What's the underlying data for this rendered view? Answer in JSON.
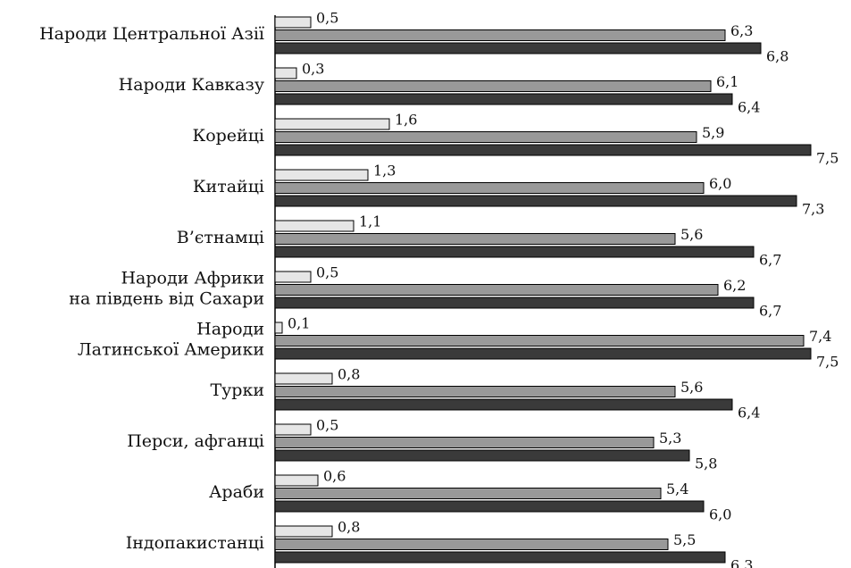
{
  "chart_data": {
    "type": "barh",
    "categories": [
      "Народи Центральної Азії",
      "Народи Кавказу",
      "Корейці",
      "Китайці",
      "В’єтнамці",
      "Народи Африки\nна південь від Сахари",
      "Народи\nЛатинської Америки",
      "Турки",
      "Перси, афганці",
      "Араби",
      "Індопакистанці"
    ],
    "series": [
      {
        "color": "#e6e6e6",
        "values": [
          0.5,
          0.3,
          1.6,
          1.3,
          1.1,
          0.5,
          0.1,
          0.8,
          0.5,
          0.6,
          0.8
        ],
        "value_labels": [
          "0,5",
          "0,3",
          "1,6",
          "1,3",
          "1,1",
          "0,5",
          "0,1",
          "0,8",
          "0,5",
          "0,6",
          "0,8"
        ]
      },
      {
        "color": "#999999",
        "values": [
          6.3,
          6.1,
          5.9,
          6.0,
          5.6,
          6.2,
          7.4,
          5.6,
          5.3,
          5.4,
          5.5
        ],
        "value_labels": [
          "6,3",
          "6,1",
          "5,9",
          "6,0",
          "5,6",
          "6,2",
          "7,4",
          "5,6",
          "5,3",
          "5,4",
          "5,5"
        ]
      },
      {
        "color": "#3a3a3a",
        "values": [
          6.8,
          6.4,
          7.5,
          7.3,
          6.7,
          6.7,
          7.5,
          6.4,
          5.8,
          6.0,
          6.3
        ],
        "value_labels": [
          "6,8",
          "6,4",
          "7,5",
          "7,3",
          "6,7",
          "6,7",
          "7,5",
          "6,4",
          "5,8",
          "6,0",
          "6,3"
        ]
      }
    ],
    "xlim": [
      0,
      7.5
    ]
  }
}
